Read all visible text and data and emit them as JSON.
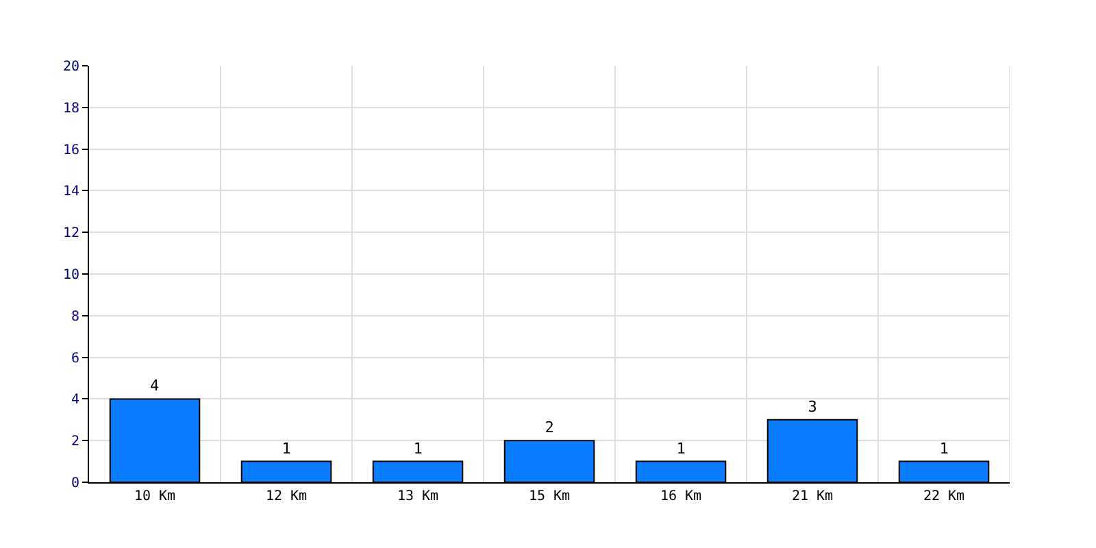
{
  "chart_data": {
    "type": "bar",
    "categories": [
      "10 Km",
      "12 Km",
      "13 Km",
      "15 Km",
      "16 Km",
      "21 Km",
      "22 Km"
    ],
    "values": [
      4,
      1,
      1,
      2,
      1,
      3,
      1
    ],
    "color": "#0a7cff",
    "ylim": [
      0,
      20
    ],
    "yticks": [
      0,
      2,
      4,
      6,
      8,
      10,
      12,
      14,
      16,
      18,
      20
    ],
    "grid": true,
    "data_labels": true
  }
}
